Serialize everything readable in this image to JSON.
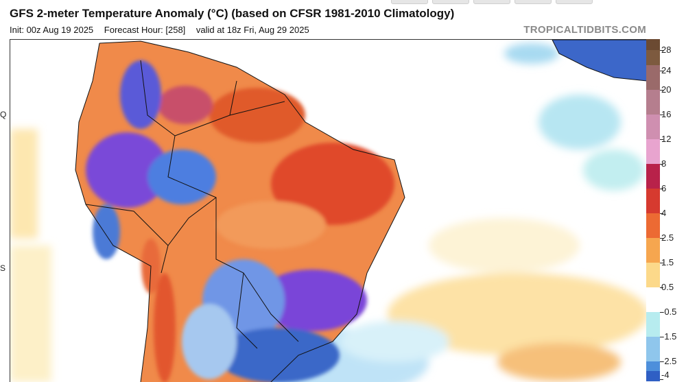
{
  "header": {
    "title": "GFS 2-meter Temperature Anomaly (°C) (based on CFSR 1981-2010 Climatology)",
    "init": "Init: 00z Aug 19 2025",
    "forecast_hour": "Forecast Hour: [258]",
    "valid": "valid at 18z Fri, Aug 29 2025",
    "brand": "TROPICALTIDBITS.COM"
  },
  "map": {
    "lat_labels": [
      "Q",
      "S"
    ]
  },
  "colorbar": {
    "labels": [
      "28",
      "24",
      "20",
      "16",
      "12",
      "8",
      "6",
      "4",
      "2.5",
      "1.5",
      "0.5",
      "-0.5",
      "-1.5",
      "-2.5",
      "-4"
    ],
    "colors": [
      "#6b4a32",
      "#7d5a3f",
      "#9a6a6a",
      "#b57e8e",
      "#cf8fb0",
      "#e8a4cf",
      "#b8224a",
      "#d63a2f",
      "#ec6a33",
      "#f6a64f",
      "#fcd98a",
      "#ffffff",
      "#b7ecef",
      "#8fc6ec",
      "#4d8fdb",
      "#2f5fc4"
    ]
  }
}
